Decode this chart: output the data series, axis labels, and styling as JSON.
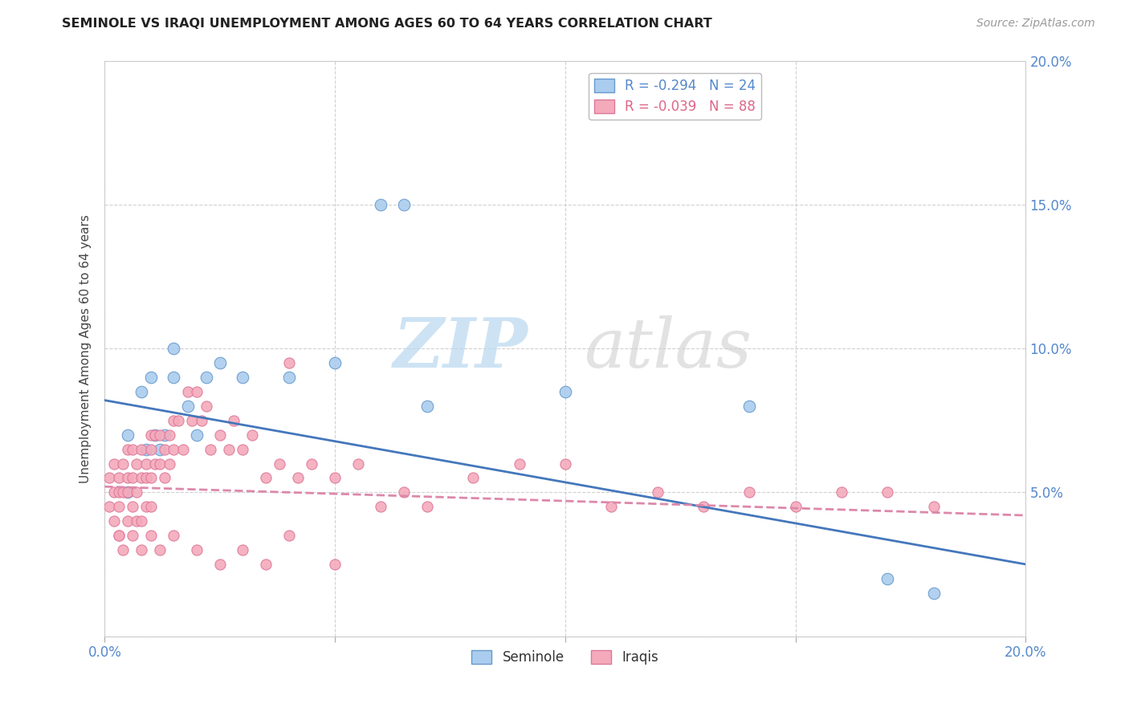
{
  "title": "SEMINOLE VS IRAQI UNEMPLOYMENT AMONG AGES 60 TO 64 YEARS CORRELATION CHART",
  "source": "Source: ZipAtlas.com",
  "ylabel": "Unemployment Among Ages 60 to 64 years",
  "xlim": [
    0.0,
    0.2
  ],
  "ylim": [
    0.0,
    0.2
  ],
  "xtick_vals": [
    0.0,
    0.05,
    0.1,
    0.15,
    0.2
  ],
  "xtick_labels": [
    "0.0%",
    "",
    "",
    "",
    "20.0%"
  ],
  "ytick_vals": [
    0.0,
    0.05,
    0.1,
    0.15,
    0.2
  ],
  "ytick_labels_right": [
    "",
    "5.0%",
    "10.0%",
    "15.0%",
    "20.0%"
  ],
  "seminole_color": "#aaccee",
  "iraqi_color": "#f4aabb",
  "seminole_edge": "#6699cc",
  "iraqi_edge": "#dd7799",
  "trendline_seminole_color": "#4477bb",
  "trendline_iraqi_color": "#dd88aa",
  "grid_color": "#cccccc",
  "legend_R_seminole": "R = -0.294",
  "legend_N_seminole": "N = 24",
  "legend_R_iraqi": "R = -0.039",
  "legend_N_iraqi": "N = 88",
  "watermark_zip": "ZIP",
  "watermark_atlas": "atlas",
  "seminole_x": [
    0.005,
    0.005,
    0.008,
    0.009,
    0.01,
    0.011,
    0.012,
    0.013,
    0.015,
    0.015,
    0.018,
    0.02,
    0.022,
    0.025,
    0.03,
    0.04,
    0.05,
    0.06,
    0.065,
    0.07,
    0.1,
    0.14,
    0.17,
    0.18
  ],
  "seminole_y": [
    0.05,
    0.07,
    0.085,
    0.065,
    0.09,
    0.07,
    0.065,
    0.07,
    0.1,
    0.09,
    0.08,
    0.07,
    0.09,
    0.095,
    0.09,
    0.09,
    0.095,
    0.15,
    0.15,
    0.08,
    0.085,
    0.08,
    0.02,
    0.015
  ],
  "iraqi_x": [
    0.001,
    0.001,
    0.002,
    0.002,
    0.002,
    0.003,
    0.003,
    0.003,
    0.003,
    0.004,
    0.004,
    0.005,
    0.005,
    0.005,
    0.005,
    0.006,
    0.006,
    0.006,
    0.007,
    0.007,
    0.007,
    0.008,
    0.008,
    0.008,
    0.009,
    0.009,
    0.009,
    0.01,
    0.01,
    0.01,
    0.01,
    0.011,
    0.011,
    0.012,
    0.012,
    0.013,
    0.013,
    0.014,
    0.014,
    0.015,
    0.015,
    0.016,
    0.017,
    0.018,
    0.019,
    0.02,
    0.021,
    0.022,
    0.023,
    0.025,
    0.027,
    0.028,
    0.03,
    0.032,
    0.035,
    0.038,
    0.04,
    0.042,
    0.045,
    0.05,
    0.055,
    0.06,
    0.065,
    0.07,
    0.08,
    0.09,
    0.1,
    0.11,
    0.12,
    0.13,
    0.14,
    0.15,
    0.16,
    0.17,
    0.18,
    0.003,
    0.004,
    0.006,
    0.008,
    0.01,
    0.012,
    0.015,
    0.02,
    0.025,
    0.03,
    0.035,
    0.04,
    0.05
  ],
  "iraqi_y": [
    0.055,
    0.045,
    0.06,
    0.05,
    0.04,
    0.055,
    0.05,
    0.045,
    0.035,
    0.06,
    0.05,
    0.065,
    0.055,
    0.05,
    0.04,
    0.065,
    0.055,
    0.045,
    0.06,
    0.05,
    0.04,
    0.065,
    0.055,
    0.04,
    0.06,
    0.055,
    0.045,
    0.07,
    0.065,
    0.055,
    0.045,
    0.07,
    0.06,
    0.07,
    0.06,
    0.065,
    0.055,
    0.07,
    0.06,
    0.075,
    0.065,
    0.075,
    0.065,
    0.085,
    0.075,
    0.085,
    0.075,
    0.08,
    0.065,
    0.07,
    0.065,
    0.075,
    0.065,
    0.07,
    0.055,
    0.06,
    0.095,
    0.055,
    0.06,
    0.055,
    0.06,
    0.045,
    0.05,
    0.045,
    0.055,
    0.06,
    0.06,
    0.045,
    0.05,
    0.045,
    0.05,
    0.045,
    0.05,
    0.05,
    0.045,
    0.035,
    0.03,
    0.035,
    0.03,
    0.035,
    0.03,
    0.035,
    0.03,
    0.025,
    0.03,
    0.025,
    0.035,
    0.025
  ],
  "seminole_trend": [
    0.082,
    0.025
  ],
  "iraqi_trend": [
    0.052,
    0.042
  ],
  "background_color": "#ffffff",
  "text_color_blue": "#5588cc",
  "text_color_pink": "#dd6688"
}
